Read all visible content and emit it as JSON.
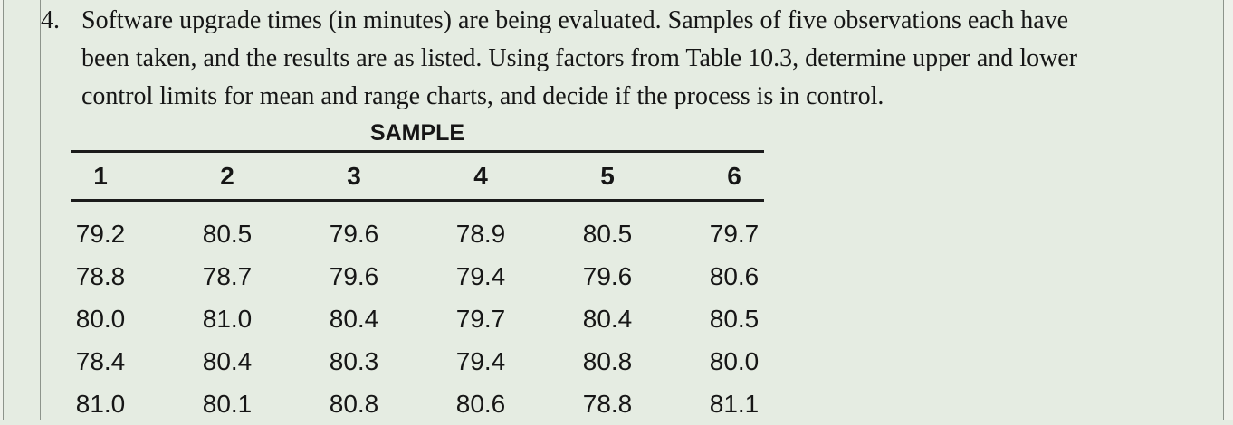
{
  "page": {
    "background_color": "#e5ece2",
    "rule_color": "#1b1b1b",
    "border_line_color": "#8d948b"
  },
  "problem": {
    "number": "4.",
    "text_lines": [
      "Software upgrade times (in minutes) are being evaluated. Samples of five observations each have",
      "been taken, and the results are as listed. Using factors from Table 10.3, determine upper and lower",
      "control limits for mean and range charts, and decide if the process is in control."
    ]
  },
  "table": {
    "title": "SAMPLE",
    "columns": [
      "1",
      "2",
      "3",
      "4",
      "5",
      "6"
    ],
    "rows": [
      [
        "79.2",
        "80.5",
        "79.6",
        "78.9",
        "80.5",
        "79.7"
      ],
      [
        "78.8",
        "78.7",
        "79.6",
        "79.4",
        "79.6",
        "80.6"
      ],
      [
        "80.0",
        "81.0",
        "80.4",
        "79.7",
        "80.4",
        "80.5"
      ],
      [
        "78.4",
        "80.4",
        "80.3",
        "79.4",
        "80.8",
        "80.0"
      ],
      [
        "81.0",
        "80.1",
        "80.8",
        "80.6",
        "78.8",
        "81.1"
      ]
    ]
  }
}
